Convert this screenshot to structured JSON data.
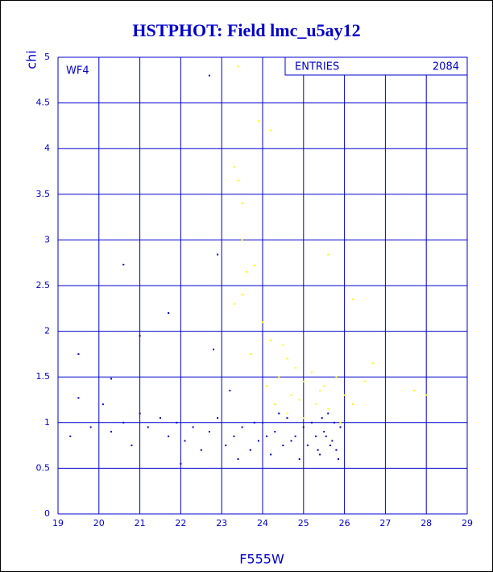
{
  "chart_data": {
    "type": "scatter",
    "title": "HSTPHOT: Field lmc_u5ay12",
    "x_label": "F555W",
    "y_label": "chi",
    "annotation": "WF4",
    "stats": {
      "label": "ENTRIES",
      "value": 2084
    },
    "xlim": [
      19,
      29
    ],
    "ylim": [
      0,
      5
    ],
    "xticks": [
      19,
      20,
      21,
      22,
      23,
      24,
      25,
      26,
      27,
      28,
      29
    ],
    "yticks": [
      0,
      0.5,
      1,
      1.5,
      2,
      2.5,
      3,
      3.5,
      4,
      4.5,
      5
    ],
    "grid": true,
    "series": [
      {
        "color": "#0000cc",
        "x": [
          19.3,
          19.5,
          19.8,
          20.1,
          20.3,
          20.6,
          20.8,
          21.0,
          21.2,
          21.5,
          21.7,
          21.9,
          22.1,
          22.3,
          22.5,
          22.7,
          22.9,
          23.1,
          23.3,
          23.5,
          23.7,
          23.9,
          24.0,
          24.2,
          24.3,
          24.5,
          24.6,
          24.8,
          24.9,
          25.0,
          25.1,
          25.2,
          25.3,
          25.4,
          25.5,
          25.6,
          25.7,
          25.8,
          25.9,
          25.85,
          25.75,
          25.65,
          25.55,
          25.45,
          25.35,
          24.7,
          24.4,
          24.1,
          23.8,
          23.4,
          22.8,
          21.7,
          20.6,
          19.5,
          21.0,
          22.9,
          22.7,
          23.2,
          22.0,
          20.3
        ],
        "values": [
          0.85,
          1.27,
          0.95,
          1.2,
          0.9,
          1.0,
          0.75,
          1.1,
          0.95,
          1.05,
          0.85,
          1.0,
          0.8,
          0.95,
          0.7,
          0.9,
          1.05,
          0.75,
          0.85,
          0.95,
          0.7,
          0.8,
          1.0,
          0.65,
          0.9,
          0.75,
          1.05,
          0.85,
          0.6,
          0.95,
          0.75,
          1.0,
          0.85,
          0.65,
          0.9,
          1.1,
          0.8,
          0.7,
          0.95,
          0.6,
          1.0,
          0.75,
          0.85,
          1.05,
          0.7,
          0.8,
          1.1,
          0.85,
          1.0,
          0.6,
          1.8,
          2.2,
          2.73,
          1.75,
          1.95,
          2.84,
          4.8,
          1.35,
          0.55,
          1.48
        ]
      },
      {
        "color": "#ffff00",
        "x": [
          23.4,
          23.9,
          24.2,
          23.3,
          23.4,
          23.5,
          23.5,
          23.6,
          23.8,
          23.3,
          23.5,
          24.0,
          24.2,
          24.5,
          24.6,
          24.8,
          24.4,
          25.0,
          25.2,
          25.5,
          24.7,
          24.9,
          25.3,
          25.6,
          24.3,
          24.6,
          25.0,
          25.4,
          25.8,
          26.0,
          26.2,
          26.5,
          26.7,
          27.7,
          28.0,
          26.2,
          25.6,
          23.7,
          24.1,
          25.9
        ],
        "values": [
          4.9,
          4.3,
          4.2,
          3.8,
          3.65,
          3.4,
          3.0,
          2.65,
          2.72,
          2.3,
          2.4,
          2.1,
          1.9,
          1.85,
          1.7,
          1.6,
          1.5,
          1.45,
          1.55,
          1.4,
          1.3,
          1.25,
          1.2,
          1.15,
          1.2,
          1.1,
          1.05,
          1.35,
          1.5,
          1.3,
          1.2,
          1.45,
          1.65,
          1.35,
          1.3,
          2.35,
          2.84,
          1.75,
          1.4,
          1.0
        ]
      }
    ]
  }
}
